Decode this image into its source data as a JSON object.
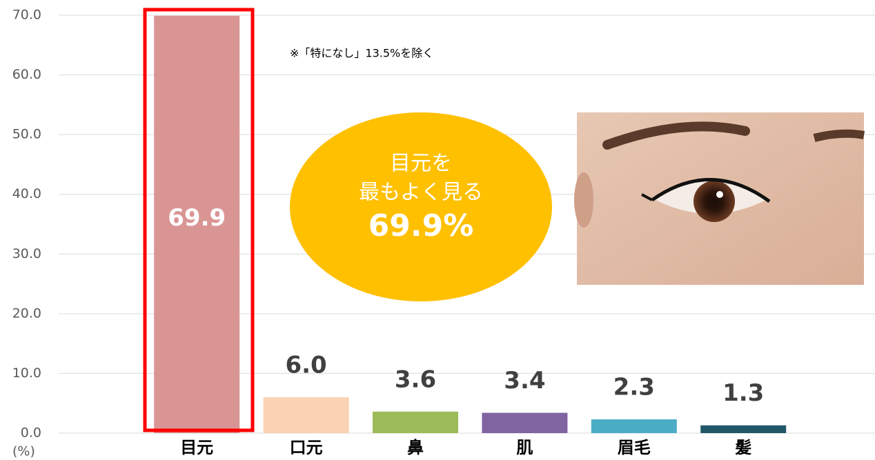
{
  "chart_data": {
    "type": "bar",
    "categories": [
      "目元",
      "口元",
      "鼻",
      "肌",
      "眉毛",
      "髪"
    ],
    "values": [
      69.9,
      6.0,
      3.6,
      3.4,
      2.3,
      1.3
    ],
    "value_labels": [
      "69.9",
      "6.0",
      "3.6",
      "3.4",
      "2.3",
      "1.3"
    ],
    "colors": [
      "#d99594",
      "#f9d3b3",
      "#9bbb59",
      "#8064a2",
      "#4bacc6",
      "#215868"
    ],
    "ylim": [
      0,
      70
    ],
    "yticks": [
      {
        "value": 0,
        "label": "0.0"
      },
      {
        "value": 10,
        "label": "10.0"
      },
      {
        "value": 20,
        "label": "20.0"
      },
      {
        "value": 30,
        "label": "30.0"
      },
      {
        "value": 40,
        "label": "40.0"
      },
      {
        "value": 50,
        "label": "50.0"
      },
      {
        "value": 60,
        "label": "60.0"
      },
      {
        "value": 70,
        "label": "70.0"
      }
    ],
    "ylabel": "(%)",
    "grid": true,
    "annotation": "※「特になし」13.5%を除く",
    "callout": {
      "lines": [
        "目元を",
        "最もよく見る"
      ],
      "highlight": "69.9%"
    }
  }
}
